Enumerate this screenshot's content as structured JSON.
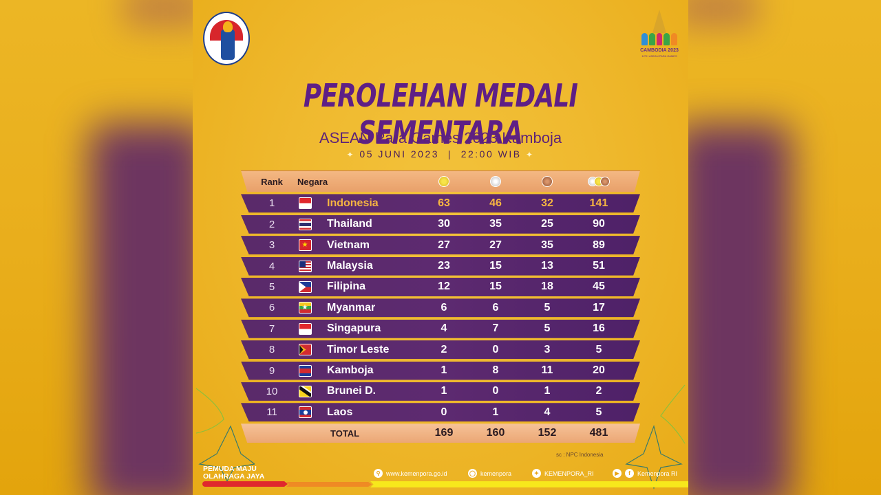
{
  "poster": {
    "title": "PEROLEHAN MEDALI SEMENTARA",
    "subtitle": "ASEAN Para Games 2023 Kamboja",
    "date": "05 JUNI 2023",
    "separator": "|",
    "time": "22:00 WIB",
    "star": "✦",
    "logo_left": {
      "text": "KEMENTERIAN PEMUDA DAN OLAHRAGA REPUBLIK INDONESIA"
    },
    "logo_right": {
      "line1": "CAMBODIA 2023",
      "line2": "12TH ASEAN PARA GAMES"
    }
  },
  "table": {
    "headers": {
      "rank": "Rank",
      "country": "Negara",
      "gold": "gold-medal-icon",
      "silver": "silver-medal-icon",
      "bronze": "bronze-medal-icon",
      "total": "total-medals-icon"
    },
    "rows": [
      {
        "rank": "1",
        "flag": "id",
        "country": "Indonesia",
        "gold": "63",
        "silver": "46",
        "bronze": "32",
        "total": "141",
        "highlight": true
      },
      {
        "rank": "2",
        "flag": "th",
        "country": "Thailand",
        "gold": "30",
        "silver": "35",
        "bronze": "25",
        "total": "90"
      },
      {
        "rank": "3",
        "flag": "vn",
        "country": "Vietnam",
        "gold": "27",
        "silver": "27",
        "bronze": "35",
        "total": "89"
      },
      {
        "rank": "4",
        "flag": "my",
        "country": "Malaysia",
        "gold": "23",
        "silver": "15",
        "bronze": "13",
        "total": "51"
      },
      {
        "rank": "5",
        "flag": "ph",
        "country": "Filipina",
        "gold": "12",
        "silver": "15",
        "bronze": "18",
        "total": "45"
      },
      {
        "rank": "6",
        "flag": "mm",
        "country": "Myanmar",
        "gold": "6",
        "silver": "6",
        "bronze": "5",
        "total": "17"
      },
      {
        "rank": "7",
        "flag": "sg",
        "country": "Singapura",
        "gold": "4",
        "silver": "7",
        "bronze": "5",
        "total": "16"
      },
      {
        "rank": "8",
        "flag": "tl",
        "country": "Timor Leste",
        "gold": "2",
        "silver": "0",
        "bronze": "3",
        "total": "5"
      },
      {
        "rank": "9",
        "flag": "kh",
        "country": "Kamboja",
        "gold": "1",
        "silver": "8",
        "bronze": "11",
        "total": "20"
      },
      {
        "rank": "10",
        "flag": "bn",
        "country": "Brunei D.",
        "gold": "1",
        "silver": "0",
        "bronze": "1",
        "total": "2"
      },
      {
        "rank": "11",
        "flag": "la",
        "country": "Laos",
        "gold": "0",
        "silver": "1",
        "bronze": "4",
        "total": "5"
      }
    ],
    "total": {
      "label": "TOTAL",
      "gold": "169",
      "silver": "160",
      "bronze": "152",
      "total": "481"
    }
  },
  "source": "sc : NPC Indonesia",
  "footer": {
    "slogan_line1": "PEMUDA MAJU",
    "slogan_line2": "OLAHRAGA JAYA",
    "website": "www.kemenpora.go.id",
    "instagram": "kemenpora",
    "twitter": "KEMENPORA_RI",
    "youtube_facebook": "Kemenpora RI"
  },
  "colors": {
    "background": "#efb92e",
    "title_purple": "#5e1f86",
    "row_purple": "#5a2a6a",
    "header_peach": "#eba775",
    "highlight_gold": "#f6b541"
  }
}
